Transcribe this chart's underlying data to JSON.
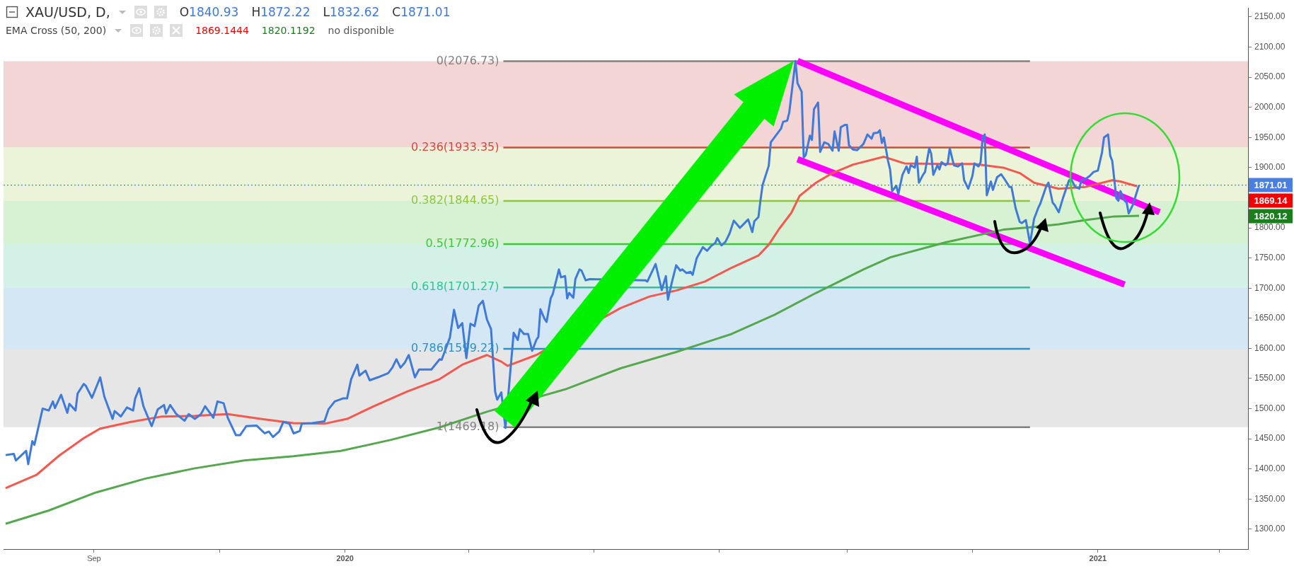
{
  "chart_data": {
    "type": "line",
    "title": "XAU/USD, D,",
    "subtitle": "EMA Cross (50, 200)",
    "xlim": [
      "2019-07-19",
      "2021-03-15"
    ],
    "xticks": [
      {
        "value": "2019-09-01",
        "label": "Sep"
      },
      {
        "value": "2019-11-01",
        "label": null
      },
      {
        "value": "2020-01-01",
        "label": "2020"
      },
      {
        "value": "2020-03-01",
        "label": null
      },
      {
        "value": "2020-05-01",
        "label": null
      },
      {
        "value": "2020-07-01",
        "label": null
      },
      {
        "value": "2020-09-01",
        "label": null
      },
      {
        "value": "2020-11-01",
        "label": null
      },
      {
        "value": "2021-01-01",
        "label": "2021"
      },
      {
        "value": "2021-03-01",
        "label": null
      }
    ],
    "ylim": [
      1267,
      2165
    ],
    "yticks": [
      {
        "value": 1300,
        "label": "1300.00"
      },
      {
        "value": 1350,
        "label": "1350.00"
      },
      {
        "value": 1400,
        "label": "1400.00"
      },
      {
        "value": 1450,
        "label": "1450.00"
      },
      {
        "value": 1500,
        "label": "1500.00"
      },
      {
        "value": 1550,
        "label": "1550.00"
      },
      {
        "value": 1600,
        "label": "1600.00"
      },
      {
        "value": 1650,
        "label": "1650.00"
      },
      {
        "value": 1700,
        "label": "1700.00"
      },
      {
        "value": 1750,
        "label": "1750.00"
      },
      {
        "value": 1800,
        "label": "1800.00"
      },
      {
        "value": 1850,
        "label": null
      },
      {
        "value": 1900,
        "label": "1900.00"
      },
      {
        "value": 1950,
        "label": "1950.00"
      },
      {
        "value": 2000,
        "label": "2000.00"
      },
      {
        "value": 2050,
        "label": "2050.00"
      },
      {
        "value": 2100,
        "label": "2100.00"
      },
      {
        "value": 2150,
        "label": "2150.00"
      }
    ],
    "grid": false,
    "legend": false,
    "marker": "none",
    "line_style": "solid",
    "series": [
      {
        "color": "#3f7ad8",
        "x": [
          "2019-07-20",
          "2019-07-24",
          "2019-07-25",
          "2019-07-30",
          "2019-07-31",
          "2019-08-02",
          "2019-08-03",
          "2019-08-07",
          "2019-08-10",
          "2019-08-12",
          "2019-08-13",
          "2019-08-16",
          "2019-08-19",
          "2019-08-20",
          "2019-08-23",
          "2019-08-24",
          "2019-08-27",
          "2019-08-28",
          "2019-08-31",
          "2019-09-04",
          "2019-09-06",
          "2019-09-10",
          "2019-09-11",
          "2019-09-14",
          "2019-09-17",
          "2019-09-20",
          "2019-09-21",
          "2019-09-23",
          "2019-09-25",
          "2019-09-29",
          "2019-10-02",
          "2019-10-05",
          "2019-10-06",
          "2019-10-08",
          "2019-10-11",
          "2019-10-15",
          "2019-10-17",
          "2019-10-20",
          "2019-10-23",
          "2019-10-25",
          "2019-10-29",
          "2019-10-31",
          "2019-11-03",
          "2019-11-05",
          "2019-11-09",
          "2019-11-11",
          "2019-11-14",
          "2019-11-19",
          "2019-11-23",
          "2019-11-25",
          "2019-11-27",
          "2019-11-30",
          "2019-12-02",
          "2019-12-05",
          "2019-12-07",
          "2019-12-10",
          "2019-12-11",
          "2019-12-16",
          "2019-12-22",
          "2019-12-24",
          "2019-12-27",
          "2019-12-31",
          "2020-01-02",
          "2020-01-04",
          "2020-01-07",
          "2020-01-08",
          "2020-01-11",
          "2020-01-13",
          "2020-01-17",
          "2020-01-22",
          "2020-01-24",
          "2020-01-26",
          "2020-01-28",
          "2020-01-30",
          "2020-02-01",
          "2020-02-04",
          "2020-02-06",
          "2020-02-12",
          "2020-02-16",
          "2020-02-17",
          "2020-02-21",
          "2020-02-23",
          "2020-02-25",
          "2020-02-27",
          "2020-02-29",
          "2020-03-02",
          "2020-03-04",
          "2020-03-06",
          "2020-03-08",
          "2020-03-10",
          "2020-03-12",
          "2020-03-14",
          "2020-03-15",
          "2020-03-17",
          "2020-03-19",
          "2020-03-23",
          "2020-03-25",
          "2020-03-26",
          "2020-03-28",
          "2020-03-30",
          "2020-04-01",
          "2020-04-03",
          "2020-04-04",
          "2020-04-05",
          "2020-04-07",
          "2020-04-08",
          "2020-04-10",
          "2020-04-11",
          "2020-04-14",
          "2020-04-15",
          "2020-04-17",
          "2020-04-18",
          "2020-04-19",
          "2020-04-21",
          "2020-04-22",
          "2020-04-24",
          "2020-04-25",
          "2020-04-27",
          "2020-04-29",
          "2020-05-26",
          "2020-05-27",
          "2020-05-31",
          "2020-06-03",
          "2020-06-05",
          "2020-06-06",
          "2020-06-08",
          "2020-06-10",
          "2020-06-12",
          "2020-06-13",
          "2020-06-15",
          "2020-06-17",
          "2020-06-18",
          "2020-06-20",
          "2020-06-23",
          "2020-06-25",
          "2020-06-27",
          "2020-06-29",
          "2020-06-30",
          "2020-07-02",
          "2020-07-04",
          "2020-07-06",
          "2020-07-08",
          "2020-07-11",
          "2020-07-13",
          "2020-07-15",
          "2020-07-17",
          "2020-07-18",
          "2020-07-20",
          "2020-07-21",
          "2020-07-22",
          "2020-07-25",
          "2020-07-26",
          "2020-07-31",
          "2020-08-01",
          "2020-08-03",
          "2020-08-04",
          "2020-08-07",
          "2020-08-08",
          "2020-08-10",
          "2020-08-11",
          "2020-08-12",
          "2020-08-14",
          "2020-08-15",
          "2020-08-16",
          "2020-08-18",
          "2020-08-19",
          "2020-08-21",
          "2020-08-23",
          "2020-08-25",
          "2020-08-26",
          "2020-08-28",
          "2020-08-29",
          "2020-08-31",
          "2020-09-01",
          "2020-09-02",
          "2020-09-04",
          "2020-09-06",
          "2020-09-09",
          "2020-09-11",
          "2020-09-13",
          "2020-09-14",
          "2020-09-16",
          "2020-09-17",
          "2020-09-18",
          "2020-09-19",
          "2020-09-21",
          "2020-09-22",
          "2020-09-23",
          "2020-09-25",
          "2020-09-26",
          "2020-09-28",
          "2020-09-30",
          "2020-10-01",
          "2020-10-02",
          "2020-10-04",
          "2020-10-05",
          "2020-10-06",
          "2020-10-08",
          "2020-10-09",
          "2020-10-11",
          "2020-10-12",
          "2020-10-13",
          "2020-10-15",
          "2020-10-16",
          "2020-10-17",
          "2020-10-19",
          "2020-10-20",
          "2020-10-21",
          "2020-10-23",
          "2020-10-25",
          "2020-10-27",
          "2020-10-28",
          "2020-10-30",
          "2020-11-01",
          "2020-11-02",
          "2020-11-04",
          "2020-11-05",
          "2020-11-06",
          "2020-11-07",
          "2020-11-08",
          "2020-11-10",
          "2020-11-11",
          "2020-11-13",
          "2020-11-15",
          "2020-11-17",
          "2020-11-19",
          "2020-11-20",
          "2020-11-22",
          "2020-11-24",
          "2020-11-25",
          "2020-11-27",
          "2020-11-29",
          "2020-12-01",
          "2020-12-03",
          "2020-12-04",
          "2020-12-07",
          "2020-12-08",
          "2020-12-10",
          "2020-12-11",
          "2020-12-13",
          "2020-12-15",
          "2020-12-18",
          "2020-12-19",
          "2020-12-21",
          "2020-12-23",
          "2020-12-24",
          "2020-12-26",
          "2020-12-28",
          "2020-12-30",
          "2021-01-01",
          "2021-01-03",
          "2021-01-04",
          "2021-01-06",
          "2021-01-07",
          "2021-01-08",
          "2021-01-10",
          "2021-01-11",
          "2021-01-12",
          "2021-01-14",
          "2021-01-15",
          "2021-01-16",
          "2021-01-18",
          "2021-01-21"
        ],
        "values": [
          1423,
          1425,
          1414,
          1430,
          1408,
          1446,
          1440,
          1500,
          1497,
          1512,
          1501,
          1523,
          1493,
          1508,
          1497,
          1525,
          1541,
          1538,
          1518,
          1552,
          1520,
          1483,
          1496,
          1487,
          1502,
          1497,
          1517,
          1534,
          1504,
          1471,
          1499,
          1506,
          1492,
          1506,
          1491,
          1480,
          1491,
          1483,
          1491,
          1504,
          1485,
          1512,
          1509,
          1485,
          1456,
          1456,
          1471,
          1472,
          1459,
          1462,
          1453,
          1462,
          1478,
          1475,
          1459,
          1463,
          1475,
          1476,
          1479,
          1499,
          1512,
          1517,
          1517,
          1549,
          1573,
          1555,
          1563,
          1547,
          1552,
          1559,
          1568,
          1582,
          1568,
          1576,
          1589,
          1552,
          1565,
          1565,
          1582,
          1581,
          1618,
          1664,
          1634,
          1642,
          1584,
          1641,
          1637,
          1671,
          1679,
          1648,
          1632,
          1528,
          1515,
          1527,
          1468,
          1626,
          1614,
          1632,
          1624,
          1624,
          1596,
          1614,
          1619,
          1665,
          1649,
          1644,
          1683,
          1690,
          1731,
          1718,
          1720,
          1683,
          1692,
          1684,
          1715,
          1731,
          1729,
          1713,
          1715,
          1713,
          1711,
          1740,
          1697,
          1720,
          1681,
          1711,
          1738,
          1729,
          1731,
          1725,
          1727,
          1722,
          1750,
          1768,
          1762,
          1770,
          1775,
          1783,
          1771,
          1777,
          1791,
          1812,
          1800,
          1807,
          1814,
          1793,
          1811,
          1818,
          1846,
          1871,
          1903,
          1942,
          1965,
          1976,
          1978,
          1992,
          2077,
          2040,
          2026,
          1917,
          1921,
          1953,
          1946,
          1997,
          2008,
          1926,
          1942,
          1939,
          1928,
          1960,
          1928,
          1967,
          1971,
          1971,
          1937,
          1930,
          1929,
          1939,
          1955,
          1948,
          1957,
          1958,
          1962,
          1941,
          1950,
          1911,
          1897,
          1861,
          1870,
          1856,
          1888,
          1902,
          1891,
          1904,
          1900,
          1918,
          1875,
          1888,
          1893,
          1932,
          1923,
          1888,
          1904,
          1897,
          1909,
          1904,
          1907,
          1932,
          1904,
          1902,
          1907,
          1879,
          1865,
          1886,
          1907,
          1902,
          1909,
          1950,
          1955,
          1854,
          1877,
          1863,
          1884,
          1889,
          1879,
          1868,
          1868,
          1833,
          1810,
          1808,
          1813,
          1774,
          1815,
          1833,
          1840,
          1870,
          1875,
          1842,
          1838,
          1826,
          1849,
          1879,
          1881,
          1868,
          1865,
          1879,
          1881,
          1886,
          1893,
          1895,
          1925,
          1950,
          1955,
          1920,
          1911,
          1849,
          1845,
          1861,
          1845,
          1842,
          1824,
          1838,
          1871
        ]
      },
      {
        "color": "#f4584f",
        "x": [
          "2019-07-20",
          "2019-08-04",
          "2019-08-15",
          "2019-08-27",
          "2019-09-04",
          "2019-09-19",
          "2019-10-04",
          "2019-10-20",
          "2019-11-05",
          "2019-11-21",
          "2019-12-07",
          "2019-12-22",
          "2020-01-02",
          "2020-01-15",
          "2020-01-31",
          "2020-02-16",
          "2020-02-27",
          "2020-03-10",
          "2020-03-17",
          "2020-03-20",
          "2020-04-03",
          "2020-05-14",
          "2020-05-28",
          "2020-06-10",
          "2020-06-24",
          "2020-07-07",
          "2020-07-20",
          "2020-07-25",
          "2020-07-30",
          "2020-08-05",
          "2020-08-09",
          "2020-08-17",
          "2020-08-25",
          "2020-09-04",
          "2020-09-19",
          "2020-09-29",
          "2020-10-19",
          "2020-11-02",
          "2020-11-16",
          "2020-11-24",
          "2020-12-01",
          "2020-12-13",
          "2020-12-26",
          "2021-01-08",
          "2021-01-12",
          "2021-01-20"
        ],
        "values": [
          1368,
          1390,
          1422,
          1451,
          1467,
          1478,
          1487,
          1488,
          1491,
          1483,
          1476,
          1475,
          1483,
          1504,
          1528,
          1549,
          1573,
          1589,
          1578,
          1571,
          1589,
          1667,
          1686,
          1696,
          1711,
          1734,
          1754,
          1772,
          1798,
          1825,
          1853,
          1875,
          1891,
          1905,
          1918,
          1907,
          1906,
          1906,
          1900,
          1891,
          1875,
          1865,
          1868,
          1879,
          1877,
          1869
        ]
      },
      {
        "color": "#56a84f",
        "x": [
          "2019-07-20",
          "2019-08-10",
          "2019-09-02",
          "2019-09-26",
          "2019-10-20",
          "2019-11-13",
          "2019-12-07",
          "2019-12-30",
          "2020-01-23",
          "2020-02-16",
          "2020-03-10",
          "2020-04-17",
          "2020-05-14",
          "2020-06-10",
          "2020-07-07",
          "2020-07-28",
          "2020-08-17",
          "2020-09-09",
          "2020-09-22",
          "2020-10-19",
          "2020-11-16",
          "2020-11-29",
          "2020-12-13",
          "2020-12-26",
          "2021-01-09",
          "2021-01-21"
        ],
        "values": [
          1309,
          1331,
          1361,
          1384,
          1401,
          1414,
          1421,
          1430,
          1448,
          1469,
          1495,
          1532,
          1567,
          1594,
          1624,
          1656,
          1692,
          1731,
          1751,
          1776,
          1797,
          1801,
          1806,
          1813,
          1819,
          1820
        ]
      },
      {
        "color": "#ff00ff",
        "x": [
          "2020-08-08",
          "2021-01-31"
        ],
        "values": [
          2077,
          1826
        ]
      },
      {
        "color": "#ff00ff",
        "x": [
          "2020-08-08",
          "2021-01-14"
        ],
        "values": [
          1914,
          1706
        ]
      },
      {
        "name": "0(2076.73)",
        "color": "#808080",
        "x": [
          "2020-03-18",
          "2020-11-29"
        ],
        "values": [
          2076.73,
          2076.73
        ]
      },
      {
        "name": "0.236(1933.35)",
        "color": "#d24a3c",
        "x": [
          "2020-03-18",
          "2020-11-29"
        ],
        "values": [
          1933.35,
          1933.35
        ]
      },
      {
        "name": "0.382(1844.65)",
        "color": "#8cc63f",
        "x": [
          "2020-03-18",
          "2020-11-29"
        ],
        "values": [
          1844.65,
          1844.65
        ]
      },
      {
        "name": "0.5(1772.96)",
        "color": "#3cc83c",
        "x": [
          "2020-03-18",
          "2020-11-29"
        ],
        "values": [
          1772.96,
          1772.96
        ]
      },
      {
        "name": "0.618(1701.27)",
        "color": "#2ec29a",
        "x": [
          "2020-03-18",
          "2020-11-29"
        ],
        "values": [
          1701.27,
          1701.27
        ]
      },
      {
        "name": "0.786(1599.22)",
        "color": "#2f8fc4",
        "x": [
          "2020-03-18",
          "2020-11-29"
        ],
        "values": [
          1599.22,
          1599.22
        ]
      },
      {
        "name": "1(1469.18)",
        "color": "#808080",
        "x": [
          "2020-03-18",
          "2020-11-29"
        ],
        "values": [
          1469.18,
          1469.18
        ]
      }
    ],
    "bands": [
      {
        "axis": "y",
        "from": 1933.35,
        "to": 2076.73,
        "color": "#f4d5d5"
      },
      {
        "axis": "y",
        "from": 1844.65,
        "to": 1933.35,
        "color": "#ebf3d8"
      },
      {
        "axis": "y",
        "from": 1772.96,
        "to": 1844.65,
        "color": "#d7f2d3"
      },
      {
        "axis": "y",
        "from": 1701.27,
        "to": 1772.96,
        "color": "#d3f1e6"
      },
      {
        "axis": "y",
        "from": 1599.22,
        "to": 1701.27,
        "color": "#d4e7f4"
      },
      {
        "axis": "y",
        "from": 1469.18,
        "to": 1599.22,
        "color": "#e6e6e6"
      }
    ],
    "ref_lines": [
      {
        "axis": "y",
        "value": 1871.01,
        "label": "1871.01",
        "color": "#4a7fe0",
        "line_style": "dotted"
      }
    ],
    "annotations": [
      "O1840.93",
      "H1872.22",
      "L1832.62",
      "C1871.01",
      "1869.1444",
      "1820.1192",
      "no disponible",
      "1869.14",
      "1820.12"
    ]
  }
}
